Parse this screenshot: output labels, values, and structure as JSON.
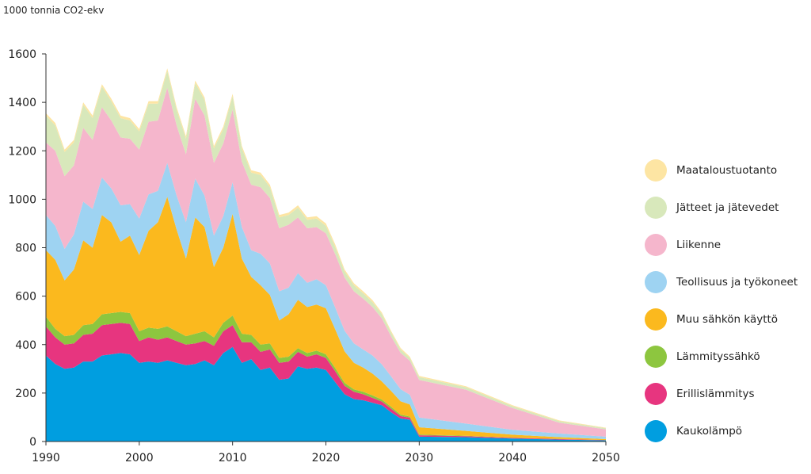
{
  "chart_data": {
    "type": "area",
    "stacked": true,
    "unit_label": "1000 tonnia CO2-ekv",
    "xlim": [
      1990,
      2050
    ],
    "ylim": [
      0,
      1600
    ],
    "x_ticks": [
      1990,
      2000,
      2010,
      2020,
      2030,
      2040,
      2050
    ],
    "y_ticks": [
      0,
      200,
      400,
      600,
      800,
      1000,
      1200,
      1400,
      1600
    ],
    "legend_position": "right",
    "years": [
      1990,
      1991,
      1992,
      1993,
      1994,
      1995,
      1996,
      1997,
      1998,
      1999,
      2000,
      2001,
      2002,
      2003,
      2004,
      2005,
      2006,
      2007,
      2008,
      2009,
      2010,
      2011,
      2012,
      2013,
      2014,
      2015,
      2016,
      2017,
      2018,
      2019,
      2020,
      2021,
      2022,
      2023,
      2024,
      2025,
      2026,
      2027,
      2028,
      2029,
      2030,
      2035,
      2040,
      2045,
      2050
    ],
    "series": [
      {
        "name": "Kaukolämpö",
        "color": "#009ee0",
        "values": [
          355,
          320,
          300,
          305,
          330,
          330,
          355,
          360,
          365,
          360,
          325,
          330,
          325,
          335,
          325,
          315,
          320,
          335,
          315,
          365,
          390,
          325,
          340,
          295,
          305,
          255,
          260,
          310,
          300,
          305,
          295,
          245,
          195,
          175,
          170,
          160,
          150,
          120,
          95,
          90,
          20,
          18,
          12,
          8,
          5
        ]
      },
      {
        "name": "Erillislämmitys",
        "color": "#e7357f",
        "values": [
          120,
          110,
          100,
          100,
          110,
          115,
          125,
          125,
          125,
          125,
          90,
          100,
          95,
          95,
          90,
          85,
          85,
          80,
          80,
          90,
          90,
          85,
          70,
          75,
          75,
          70,
          70,
          60,
          50,
          55,
          50,
          45,
          35,
          30,
          25,
          20,
          15,
          15,
          10,
          8,
          6,
          4,
          3,
          2,
          1
        ]
      },
      {
        "name": "Lämmityssähkö",
        "color": "#8dc63f",
        "values": [
          40,
          35,
          35,
          35,
          40,
          40,
          45,
          45,
          45,
          45,
          40,
          40,
          45,
          45,
          40,
          35,
          40,
          40,
          35,
          35,
          40,
          35,
          30,
          30,
          25,
          20,
          20,
          15,
          15,
          15,
          15,
          13,
          12,
          10,
          10,
          10,
          8,
          8,
          6,
          5,
          3,
          2,
          1,
          1,
          0
        ]
      },
      {
        "name": "Muu sähkön käyttö",
        "color": "#fbb91e",
        "values": [
          275,
          285,
          230,
          270,
          350,
          315,
          410,
          375,
          290,
          320,
          315,
          400,
          440,
          535,
          420,
          320,
          480,
          430,
          290,
          310,
          420,
          310,
          240,
          245,
          200,
          155,
          175,
          200,
          190,
          190,
          190,
          160,
          130,
          110,
          100,
          90,
          75,
          65,
          55,
          50,
          30,
          20,
          12,
          7,
          4
        ]
      },
      {
        "name": "Teollisuus ja työkoneet",
        "color": "#9ed3f2",
        "values": [
          145,
          140,
          130,
          145,
          160,
          160,
          155,
          140,
          150,
          130,
          150,
          150,
          130,
          140,
          140,
          150,
          160,
          130,
          130,
          130,
          130,
          130,
          110,
          130,
          130,
          120,
          110,
          110,
          100,
          105,
          95,
          90,
          85,
          80,
          75,
          75,
          70,
          60,
          50,
          40,
          40,
          30,
          20,
          15,
          10
        ]
      },
      {
        "name": "Liikenne",
        "color": "#f5b6cc",
        "values": [
          300,
          310,
          300,
          285,
          305,
          285,
          290,
          280,
          280,
          270,
          285,
          300,
          290,
          310,
          290,
          280,
          330,
          330,
          300,
          300,
          300,
          270,
          270,
          275,
          270,
          260,
          260,
          230,
          225,
          215,
          215,
          220,
          220,
          215,
          210,
          200,
          190,
          165,
          150,
          140,
          155,
          140,
          90,
          45,
          30
        ]
      },
      {
        "name": "Jätteet ja jätevedet",
        "color": "#d8e8bb",
        "values": [
          110,
          105,
          100,
          95,
          95,
          90,
          85,
          80,
          80,
          75,
          75,
          75,
          70,
          70,
          65,
          65,
          65,
          65,
          60,
          60,
          55,
          55,
          50,
          50,
          45,
          45,
          40,
          40,
          35,
          35,
          30,
          30,
          25,
          25,
          22,
          20,
          18,
          16,
          14,
          12,
          12,
          10,
          8,
          6,
          5
        ]
      },
      {
        "name": "Maataloustuotanto",
        "color": "#fde5a3",
        "values": [
          10,
          10,
          10,
          10,
          10,
          10,
          10,
          10,
          10,
          10,
          10,
          10,
          10,
          10,
          10,
          10,
          10,
          10,
          10,
          10,
          10,
          10,
          10,
          10,
          10,
          10,
          10,
          10,
          10,
          10,
          10,
          10,
          8,
          8,
          8,
          8,
          6,
          6,
          6,
          5,
          5,
          4,
          4,
          3,
          2
        ]
      }
    ]
  }
}
